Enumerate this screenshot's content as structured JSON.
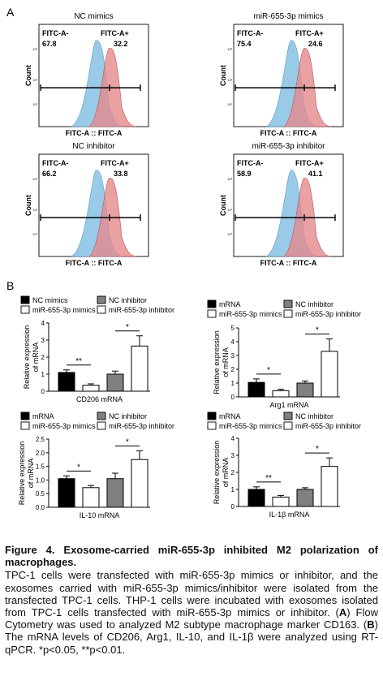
{
  "panel_labels": {
    "a": "A",
    "b": "B"
  },
  "flow": [
    {
      "title": "NC mimics",
      "neg_label": "FITC-A-",
      "neg": "67.8",
      "pos_label": "FITC-A+",
      "pos": "32.2",
      "ylabel": "Count",
      "xlabel": "FITC-A :: FITC-A",
      "yticks": [
        "10³",
        "10²",
        "10¹"
      ]
    },
    {
      "title": "miR-655-3p mimics",
      "neg_label": "FITC-A-",
      "neg": "75.4",
      "pos_label": "FITC-A+",
      "pos": "24.6",
      "ylabel": "Count",
      "xlabel": "FITC-A :: FITC-A",
      "yticks": [
        "10³",
        "10²",
        "10¹"
      ]
    },
    {
      "title": "NC inhibitor",
      "neg_label": "FITC-A-",
      "neg": "66.2",
      "pos_label": "FITC-A+",
      "pos": "33.8",
      "ylabel": "Count",
      "xlabel": "FITC-A :: FITC-A",
      "yticks": [
        "10³",
        "10²",
        "10¹"
      ]
    },
    {
      "title": "miR-655-3p inhibitor",
      "neg_label": "FITC-A-",
      "neg": "58.9",
      "pos_label": "FITC-A+",
      "pos": "41.1",
      "ylabel": "Count",
      "xlabel": "FITC-A :: FITC-A",
      "yticks": [
        "10³",
        "10²",
        "10¹"
      ]
    }
  ],
  "legends": [
    [
      {
        "label": "NC mimics",
        "fill": "#000000"
      },
      {
        "label": "NC inhibitor",
        "fill": "#808080"
      },
      {
        "label": "miR-655-3p mimics",
        "fill": "#ffffff"
      },
      {
        "label": "miR-655-3p inhibitor",
        "fill": "#ffffff"
      }
    ],
    [
      {
        "label": "mRNA",
        "fill": "#000000"
      },
      {
        "label": "NC inhibitor",
        "fill": "#808080"
      },
      {
        "label": "miR-655-3p mimics",
        "fill": "#ffffff"
      },
      {
        "label": "miR-655-3p inhibitor",
        "fill": "#ffffff"
      }
    ],
    [
      {
        "label": "mRNA",
        "fill": "#000000"
      },
      {
        "label": "NC inhibitor",
        "fill": "#808080"
      },
      {
        "label": "miR-655-3p mimics",
        "fill": "#ffffff"
      },
      {
        "label": "miR-655-3p inhibitor",
        "fill": "#ffffff"
      }
    ],
    [
      {
        "label": "mRNA",
        "fill": "#000000"
      },
      {
        "label": "NC inhibitor",
        "fill": "#808080"
      },
      {
        "label": "miR-655-3p mimics",
        "fill": "#ffffff"
      },
      {
        "label": "miR-655-3p inhibitor",
        "fill": "#ffffff"
      }
    ]
  ],
  "chart_data": [
    {
      "type": "bar",
      "xlabel": "CD206 mRNA",
      "ylabel": "Relative expression\nof mRNA",
      "ylim": [
        0,
        4
      ],
      "yticks": [
        "0",
        "1",
        "2",
        "3",
        "4"
      ],
      "values": [
        1.1,
        0.35,
        1.0,
        2.65
      ],
      "errors": [
        0.15,
        0.08,
        0.18,
        0.6
      ],
      "colors": [
        "#000000",
        "#ffffff",
        "#808080",
        "#ffffff"
      ],
      "sig": [
        {
          "from": 0,
          "to": 1,
          "label": "**"
        },
        {
          "from": 2,
          "to": 3,
          "label": "*"
        }
      ]
    },
    {
      "type": "bar",
      "xlabel": "Arg1 mRNA",
      "ylabel": "Relative expression\nof mRNA",
      "ylim": [
        0,
        5
      ],
      "yticks": [
        "0",
        "1",
        "2",
        "3",
        "4",
        "5"
      ],
      "values": [
        1.05,
        0.45,
        1.0,
        3.3
      ],
      "errors": [
        0.25,
        0.1,
        0.15,
        0.9
      ],
      "colors": [
        "#000000",
        "#ffffff",
        "#808080",
        "#ffffff"
      ],
      "sig": [
        {
          "from": 0,
          "to": 1,
          "label": "*"
        },
        {
          "from": 2,
          "to": 3,
          "label": "*"
        }
      ]
    },
    {
      "type": "bar",
      "xlabel": "IL-10 mRNA",
      "ylabel": "Relative expression\nof mRNA",
      "ylim": [
        0,
        2.5
      ],
      "yticks": [
        "0.0",
        "0.5",
        "1.0",
        "1.5",
        "2.0",
        "2.5"
      ],
      "values": [
        1.05,
        0.72,
        1.05,
        1.75
      ],
      "errors": [
        0.1,
        0.08,
        0.2,
        0.32
      ],
      "colors": [
        "#000000",
        "#ffffff",
        "#808080",
        "#ffffff"
      ],
      "sig": [
        {
          "from": 0,
          "to": 1,
          "label": "*"
        },
        {
          "from": 2,
          "to": 3,
          "label": "*"
        }
      ]
    },
    {
      "type": "bar",
      "xlabel": "IL-1β mRNA",
      "ylabel": "Relative expression\nof mRNA",
      "ylim": [
        0,
        4
      ],
      "yticks": [
        "0",
        "1",
        "2",
        "3",
        "4"
      ],
      "values": [
        1.0,
        0.55,
        1.0,
        2.35
      ],
      "errors": [
        0.15,
        0.1,
        0.1,
        0.5
      ],
      "colors": [
        "#000000",
        "#ffffff",
        "#808080",
        "#ffffff"
      ],
      "sig": [
        {
          "from": 0,
          "to": 1,
          "label": "**"
        },
        {
          "from": 2,
          "to": 3,
          "label": "*"
        }
      ]
    }
  ],
  "caption": {
    "title": "Figure 4. Exosome-carried miR-655-3p inhibited M2 polarization of macrophages.",
    "s1": "TPC-1 cells were transfected with miR-655-3p mimics or inhibitor, and the exosomes carried with miR-655-3p mimics/inhibitor were isolated from the transfected TPC-1 cells. THP-1 cells were incubated with exosomes isolated from TPC-1 cells transfected with miR-655-3p mimics or inhibitor. (",
    "a": "A",
    "s2": ") Flow Cytometry was used to analyzed M2 subtype macrophage marker CD163. (",
    "b": "B",
    "s3": ") The mRNA levels of CD206, Arg1, IL-10, and IL-1β were analyzed using RT-qPCR. ",
    "p1": "*p<0.05, **p<0.01."
  },
  "colors": {
    "blue": "#8ec5e6",
    "red": "#e3898c",
    "black": "#000000",
    "gray": "#808080"
  }
}
